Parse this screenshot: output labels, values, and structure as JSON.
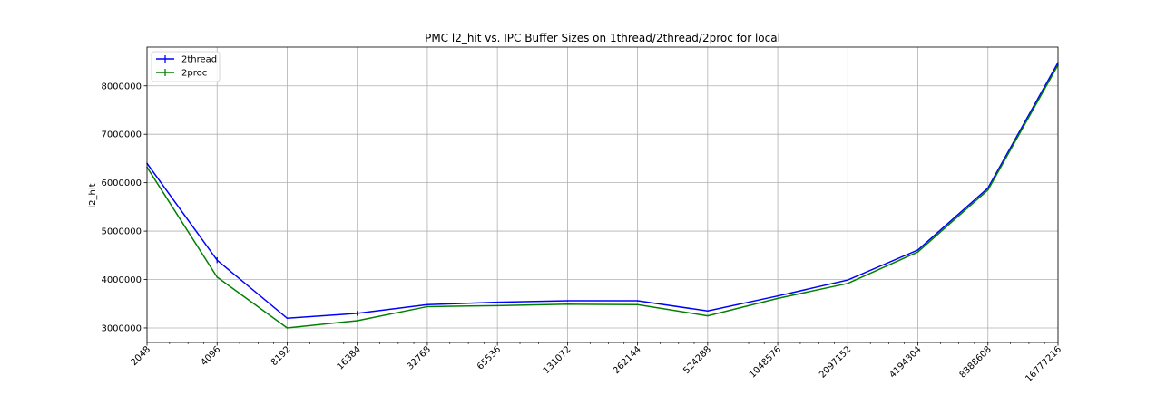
{
  "chart_data": {
    "type": "line",
    "title": "PMC l2_hit vs. IPC Buffer Sizes on 1thread/2thread/2proc for local",
    "xlabel": "",
    "ylabel": "l2_hit",
    "x_scale": "log2",
    "x": [
      2048,
      4096,
      8192,
      16384,
      32768,
      65536,
      131072,
      262144,
      524288,
      1048576,
      2097152,
      4194304,
      8388608,
      16777216
    ],
    "x_tick_labels": [
      "2048",
      "4096",
      "8192",
      "16384",
      "32768",
      "65536",
      "131072",
      "262144",
      "524288",
      "1048576",
      "2097152",
      "4194304",
      "8388608",
      "16777216"
    ],
    "xlim": [
      2048,
      16777216
    ],
    "ylim": [
      2700000,
      8800000
    ],
    "y_ticks": [
      3000000,
      4000000,
      5000000,
      6000000,
      7000000,
      8000000
    ],
    "y_tick_labels": [
      "3000000",
      "4000000",
      "5000000",
      "6000000",
      "7000000",
      "8000000"
    ],
    "grid": true,
    "legend_position": "top-left",
    "series": [
      {
        "name": "2thread",
        "color": "#0000ff",
        "values": [
          6400000,
          4400000,
          3200000,
          3300000,
          3480000,
          3530000,
          3560000,
          3560000,
          3350000,
          3660000,
          3990000,
          4610000,
          5890000,
          8480000
        ],
        "error": [
          0,
          60000,
          0,
          50000,
          0,
          0,
          0,
          0,
          0,
          0,
          0,
          0,
          0,
          0
        ]
      },
      {
        "name": "2proc",
        "color": "#008000",
        "values": [
          6320000,
          4050000,
          3000000,
          3150000,
          3440000,
          3460000,
          3490000,
          3480000,
          3250000,
          3610000,
          3920000,
          4570000,
          5850000,
          8430000
        ],
        "error": [
          0,
          0,
          0,
          0,
          0,
          0,
          0,
          0,
          0,
          0,
          0,
          0,
          0,
          0
        ]
      }
    ]
  }
}
